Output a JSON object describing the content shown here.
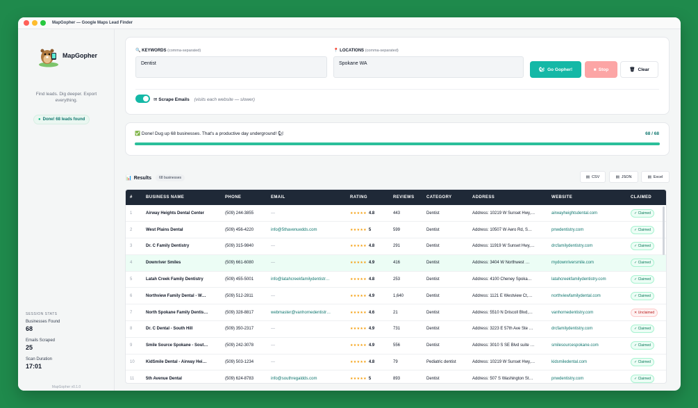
{
  "window": {
    "title": "MapGopher — Google Maps Lead Finder"
  },
  "sidebar": {
    "brand": "MapGopher",
    "tagline": "Find leads. Dig deeper. Export everything.",
    "status": "Done! 68 leads found",
    "stats_heading": "SESSION STATS",
    "stats": [
      {
        "label": "Businesses Found",
        "value": "68"
      },
      {
        "label": "Emails Scraped",
        "value": "25"
      },
      {
        "label": "Scan Duration",
        "value": "17:01"
      }
    ],
    "version": "MapGopher v0.1.0"
  },
  "search": {
    "keywords_label": "KEYWORDS",
    "keywords_hint": "(comma-separated)",
    "keywords_value": "Dentist",
    "locations_label": "LOCATIONS",
    "locations_hint": "(comma-separated)",
    "locations_value": "Spokane WA",
    "go_label": "Go Gopher!",
    "stop_label": "Stop",
    "clear_label": "Clear",
    "scrape_label": "Scrape Emails",
    "scrape_hint": "(visits each website — slower)",
    "scrape_enabled": true
  },
  "progress": {
    "message": "✅ Done! Dug up 68 businesses. That's a productive day underground! 🐿",
    "count": "68 / 68",
    "fraction": 1.0
  },
  "results": {
    "title": "Results",
    "count_label": "68 businesses",
    "exports": [
      "CSV",
      "JSON",
      "Excel"
    ],
    "columns": [
      "#",
      "BUSINESS NAME",
      "PHONE",
      "EMAIL",
      "RATING",
      "REVIEWS",
      "CATEGORY",
      "ADDRESS",
      "WEBSITE",
      "CLAIMED"
    ],
    "rows": [
      {
        "n": "1",
        "name": "Airway Heights Dental Center",
        "phone": "(509) 244-3855",
        "email": "—",
        "stars": "★★★★★",
        "rating": "4.8",
        "reviews": "443",
        "category": "Dentist",
        "address": "Address: 10219 W Sunset Hwy,…",
        "website": "airwayheightsdental.com",
        "claimed": "✓ Claimed",
        "claimed_ok": true
      },
      {
        "n": "2",
        "name": "West Plains Dental",
        "phone": "(509) 456-4220",
        "email": "info@5thavenuedds.com",
        "stars": "★★★★★",
        "rating": "5",
        "reviews": "599",
        "category": "Dentist",
        "address": "Address: 10507 W Aero Rd, S…",
        "website": "pnwdentistry.com",
        "claimed": "✓ Claimed",
        "claimed_ok": true
      },
      {
        "n": "3",
        "name": "Dr. C Family Dentistry",
        "phone": "(509) 315-9840",
        "email": "—",
        "stars": "★★★★★",
        "rating": "4.8",
        "reviews": "291",
        "category": "Dentist",
        "address": "Address: 11919 W Sunset Hwy,…",
        "website": "drcfamilydentistry.com",
        "claimed": "✓ Claimed",
        "claimed_ok": true
      },
      {
        "n": "4",
        "name": "Downriver Smiles",
        "phone": "(509) 661-6080",
        "email": "—",
        "stars": "★★★★★",
        "rating": "4.9",
        "reviews": "416",
        "category": "Dentist",
        "address": "Address: 3404 W Northwest …",
        "website": "mydownriversmile.com",
        "claimed": "✓ Claimed",
        "claimed_ok": true,
        "hl": true
      },
      {
        "n": "5",
        "name": "Latah Creek Family Dentistry",
        "phone": "(509) 455-5001",
        "email": "info@latahcreekfamilydentistr…",
        "stars": "★★★★★",
        "rating": "4.8",
        "reviews": "253",
        "category": "Dentist",
        "address": "Address: 4100 Cheney Spoka…",
        "website": "latahcreekfamilydentistry.com",
        "claimed": "✓ Claimed",
        "claimed_ok": true
      },
      {
        "n": "6",
        "name": "Northview Family Dental - W…",
        "phone": "(509) 512-2811",
        "email": "—",
        "stars": "★★★★★",
        "rating": "4.9",
        "reviews": "1,640",
        "category": "Dentist",
        "address": "Address: 1121 E Westview Ct,…",
        "website": "northviewfamilydental.com",
        "claimed": "✓ Claimed",
        "claimed_ok": true
      },
      {
        "n": "7",
        "name": "North Spokane Family Dentis…",
        "phone": "(509) 328-8817",
        "email": "webmaster@vanhornedentistr…",
        "stars": "★★★★★",
        "rating": "4.6",
        "reviews": "21",
        "category": "Dentist",
        "address": "Address: 5510 N Driscoll Blvd,…",
        "website": "vanhornedentistry.com",
        "claimed": "✕ Unclaimed",
        "claimed_ok": false
      },
      {
        "n": "8",
        "name": "Dr. C Dental - South Hill",
        "phone": "(509) 350-2317",
        "email": "—",
        "stars": "★★★★★",
        "rating": "4.9",
        "reviews": "731",
        "category": "Dentist",
        "address": "Address: 3223 E 57th Ave Ste …",
        "website": "drcfamilydentistry.com",
        "claimed": "✓ Claimed",
        "claimed_ok": true
      },
      {
        "n": "9",
        "name": "Smile Source Spokane - Sout…",
        "phone": "(509) 242-3078",
        "email": "—",
        "stars": "★★★★★",
        "rating": "4.9",
        "reviews": "556",
        "category": "Dentist",
        "address": "Address: 3010 S SE Blvd suite …",
        "website": "smilesourcespokane.com",
        "claimed": "✓ Claimed",
        "claimed_ok": true
      },
      {
        "n": "10",
        "name": "KidSmile Dental - Airway Hei…",
        "phone": "(509) 503-1234",
        "email": "—",
        "stars": "★★★★★",
        "rating": "4.8",
        "reviews": "79",
        "category": "Pediatric dentist",
        "address": "Address: 10219 W Sunset Hwy,…",
        "website": "kidsmiledental.com",
        "claimed": "✓ Claimed",
        "claimed_ok": true
      },
      {
        "n": "11",
        "name": "5th Avenue Dental",
        "phone": "(509) 624-8783",
        "email": "info@southregaldds.com",
        "stars": "★★★★★",
        "rating": "5",
        "reviews": "893",
        "category": "Dentist",
        "address": "Address: 507 S Washington St…",
        "website": "pnwdentistry.com",
        "claimed": "✓ Claimed",
        "claimed_ok": true
      }
    ]
  },
  "colors": {
    "accent": "#14b8a6",
    "background": "#1f8a4c",
    "header": "#1f2937",
    "stop": "#fca5a5"
  }
}
